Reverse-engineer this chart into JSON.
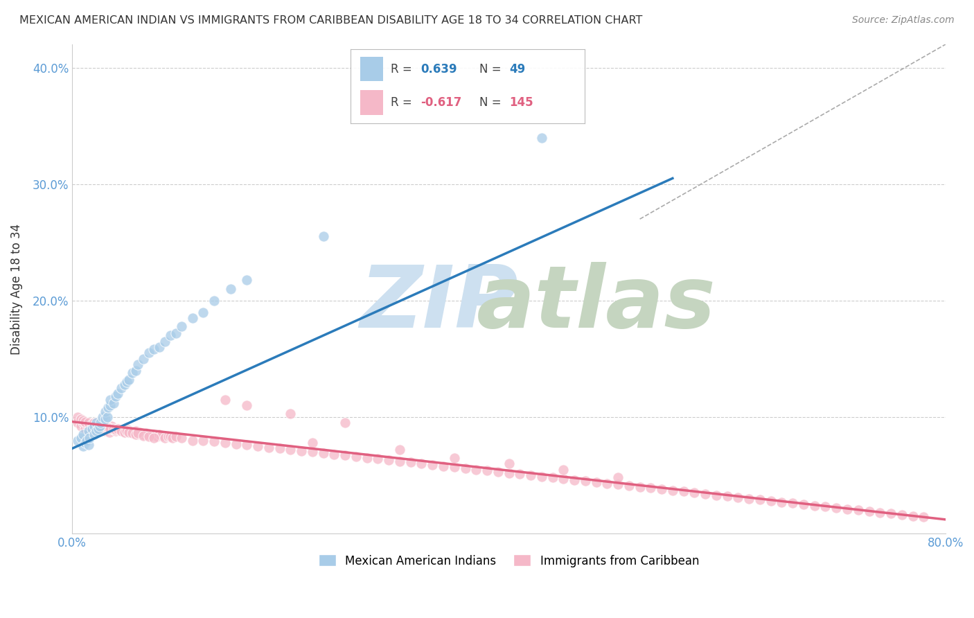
{
  "title": "MEXICAN AMERICAN INDIAN VS IMMIGRANTS FROM CARIBBEAN DISABILITY AGE 18 TO 34 CORRELATION CHART",
  "source": "Source: ZipAtlas.com",
  "ylabel": "Disability Age 18 to 34",
  "xlim": [
    0.0,
    0.8
  ],
  "ylim": [
    0.0,
    0.42
  ],
  "blue_R": 0.639,
  "blue_N": 49,
  "pink_R": -0.617,
  "pink_N": 145,
  "blue_color": "#a8cce8",
  "pink_color": "#f5b8c8",
  "blue_line_color": "#2b7bba",
  "pink_line_color": "#e06080",
  "legend_label_blue": "Mexican American Indians",
  "legend_label_pink": "Immigrants from Caribbean",
  "blue_trendline_x": [
    0.0,
    0.55
  ],
  "blue_trendline_y": [
    0.073,
    0.305
  ],
  "pink_trendline_x": [
    0.0,
    0.8
  ],
  "pink_trendline_y": [
    0.096,
    0.012
  ],
  "dashed_line_x": [
    0.52,
    0.8
  ],
  "dashed_line_y": [
    0.27,
    0.42
  ],
  "blue_scatter_x": [
    0.005,
    0.008,
    0.01,
    0.01,
    0.012,
    0.013,
    0.015,
    0.015,
    0.016,
    0.018,
    0.02,
    0.02,
    0.022,
    0.022,
    0.024,
    0.025,
    0.026,
    0.028,
    0.03,
    0.03,
    0.032,
    0.033,
    0.035,
    0.035,
    0.038,
    0.04,
    0.042,
    0.045,
    0.048,
    0.05,
    0.052,
    0.055,
    0.058,
    0.06,
    0.065,
    0.07,
    0.075,
    0.08,
    0.085,
    0.09,
    0.095,
    0.1,
    0.11,
    0.12,
    0.13,
    0.145,
    0.16,
    0.23,
    0.43
  ],
  "blue_scatter_y": [
    0.08,
    0.082,
    0.075,
    0.085,
    0.078,
    0.08,
    0.076,
    0.088,
    0.082,
    0.09,
    0.085,
    0.092,
    0.088,
    0.095,
    0.09,
    0.092,
    0.095,
    0.1,
    0.098,
    0.105,
    0.1,
    0.108,
    0.11,
    0.115,
    0.112,
    0.118,
    0.12,
    0.125,
    0.128,
    0.13,
    0.132,
    0.138,
    0.14,
    0.145,
    0.15,
    0.155,
    0.158,
    0.16,
    0.165,
    0.17,
    0.172,
    0.178,
    0.185,
    0.19,
    0.2,
    0.21,
    0.218,
    0.255,
    0.34
  ],
  "pink_scatter_x": [
    0.005,
    0.008,
    0.01,
    0.012,
    0.014,
    0.016,
    0.018,
    0.02,
    0.022,
    0.024,
    0.026,
    0.028,
    0.03,
    0.032,
    0.034,
    0.036,
    0.038,
    0.04,
    0.042,
    0.045,
    0.048,
    0.05,
    0.052,
    0.055,
    0.058,
    0.06,
    0.062,
    0.065,
    0.068,
    0.07,
    0.072,
    0.075,
    0.078,
    0.08,
    0.082,
    0.085,
    0.088,
    0.09,
    0.092,
    0.095,
    0.005,
    0.008,
    0.01,
    0.012,
    0.015,
    0.018,
    0.02,
    0.022,
    0.025,
    0.028,
    0.03,
    0.033,
    0.035,
    0.038,
    0.04,
    0.042,
    0.045,
    0.048,
    0.05,
    0.052,
    0.055,
    0.058,
    0.06,
    0.065,
    0.07,
    0.075,
    0.1,
    0.11,
    0.12,
    0.13,
    0.14,
    0.15,
    0.16,
    0.17,
    0.18,
    0.19,
    0.2,
    0.21,
    0.22,
    0.23,
    0.24,
    0.25,
    0.26,
    0.27,
    0.28,
    0.29,
    0.3,
    0.31,
    0.32,
    0.33,
    0.34,
    0.35,
    0.36,
    0.37,
    0.38,
    0.39,
    0.4,
    0.41,
    0.42,
    0.43,
    0.44,
    0.45,
    0.46,
    0.47,
    0.48,
    0.49,
    0.5,
    0.51,
    0.52,
    0.53,
    0.54,
    0.55,
    0.56,
    0.57,
    0.58,
    0.59,
    0.6,
    0.61,
    0.62,
    0.63,
    0.64,
    0.65,
    0.66,
    0.67,
    0.68,
    0.69,
    0.7,
    0.71,
    0.72,
    0.73,
    0.74,
    0.75,
    0.76,
    0.77,
    0.78,
    0.22,
    0.3,
    0.35,
    0.4,
    0.45,
    0.5,
    0.14,
    0.16,
    0.2,
    0.25
  ],
  "pink_scatter_y": [
    0.095,
    0.092,
    0.095,
    0.09,
    0.093,
    0.092,
    0.09,
    0.093,
    0.095,
    0.09,
    0.092,
    0.09,
    0.088,
    0.09,
    0.087,
    0.092,
    0.089,
    0.088,
    0.09,
    0.088,
    0.087,
    0.09,
    0.088,
    0.086,
    0.088,
    0.085,
    0.087,
    0.085,
    0.086,
    0.085,
    0.084,
    0.085,
    0.083,
    0.085,
    0.084,
    0.082,
    0.083,
    0.083,
    0.082,
    0.083,
    0.1,
    0.098,
    0.097,
    0.096,
    0.095,
    0.094,
    0.095,
    0.093,
    0.092,
    0.091,
    0.092,
    0.091,
    0.09,
    0.09,
    0.089,
    0.09,
    0.088,
    0.087,
    0.088,
    0.087,
    0.086,
    0.085,
    0.086,
    0.084,
    0.083,
    0.082,
    0.082,
    0.08,
    0.08,
    0.079,
    0.078,
    0.077,
    0.076,
    0.075,
    0.074,
    0.073,
    0.072,
    0.071,
    0.07,
    0.069,
    0.068,
    0.067,
    0.066,
    0.065,
    0.064,
    0.063,
    0.062,
    0.061,
    0.06,
    0.059,
    0.058,
    0.057,
    0.056,
    0.055,
    0.054,
    0.053,
    0.052,
    0.051,
    0.05,
    0.049,
    0.048,
    0.047,
    0.046,
    0.045,
    0.044,
    0.043,
    0.042,
    0.041,
    0.04,
    0.039,
    0.038,
    0.037,
    0.036,
    0.035,
    0.034,
    0.033,
    0.032,
    0.031,
    0.03,
    0.029,
    0.028,
    0.027,
    0.026,
    0.025,
    0.024,
    0.023,
    0.022,
    0.021,
    0.02,
    0.019,
    0.018,
    0.017,
    0.016,
    0.015,
    0.014,
    0.078,
    0.072,
    0.065,
    0.06,
    0.055,
    0.048,
    0.115,
    0.11,
    0.103,
    0.095
  ]
}
